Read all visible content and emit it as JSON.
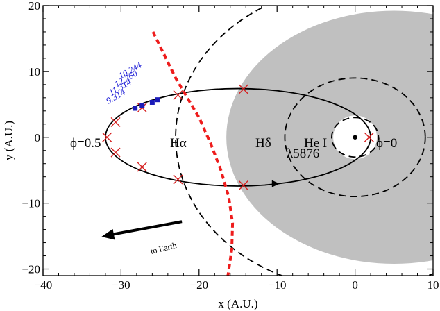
{
  "chart_data": {
    "type": "scatter",
    "title": "",
    "xlabel": "x (A.U.)",
    "ylabel": "y (A.U.)",
    "xlim": [
      -40,
      10
    ],
    "ylim": [
      -21,
      20
    ],
    "x_ticks": [
      -40,
      -30,
      -20,
      -10,
      0,
      10
    ],
    "x_tick_labels": [
      "−40",
      "−30",
      "−20",
      "−10",
      "0",
      "10"
    ],
    "y_ticks": [
      -20,
      -10,
      0,
      10,
      20
    ],
    "y_tick_labels": [
      "−20",
      "−10",
      "0",
      "10",
      "20"
    ],
    "grid": false,
    "legend": "none",
    "colors": {
      "orbit": "#000000",
      "markers": "#d62020",
      "shock": "#ee1c1c",
      "shade": "#c0c0c0",
      "phase_points": "#1a1ab8"
    },
    "orbit": {
      "center": [
        -15,
        0
      ],
      "semi_major": 17,
      "semi_minor": 7.4,
      "focus": [
        0,
        0
      ]
    },
    "orbit_markers": [
      {
        "x": 1.8,
        "y": 0
      },
      {
        "x": -14.3,
        "y": 7.3
      },
      {
        "x": -14.3,
        "y": -7.3
      },
      {
        "x": -22.7,
        "y": 6.4
      },
      {
        "x": -22.7,
        "y": -6.4
      },
      {
        "x": -27.3,
        "y": 4.5
      },
      {
        "x": -27.3,
        "y": -4.5
      },
      {
        "x": -30.7,
        "y": 2.3
      },
      {
        "x": -30.7,
        "y": -2.3
      },
      {
        "x": -31.8,
        "y": 0
      }
    ],
    "phase_points": [
      {
        "label": "9.314",
        "x": -28.2,
        "y": 4.4
      },
      {
        "label": "11.314",
        "x": -27.3,
        "y": 4.8
      },
      {
        "label": "12.260",
        "x": -26.0,
        "y": 5.3
      },
      {
        "label": "10.244",
        "x": -25.3,
        "y": 5.7
      }
    ],
    "dashed_circles": [
      {
        "cx": 0,
        "cy": 0,
        "r": 3
      },
      {
        "cx": 0,
        "cy": 0,
        "r": 9
      },
      {
        "cx": 0,
        "cy": 0,
        "r": 23
      }
    ],
    "shaded_region": {
      "cx": 5,
      "cy": 0,
      "rx": 21.5,
      "ry": 19.2,
      "hole_r": 2.8
    },
    "shock_curve": [
      {
        "x": -25.9,
        "y": 16
      },
      {
        "x": -23,
        "y": 9
      },
      {
        "x": -21.5,
        "y": 6
      },
      {
        "x": -20,
        "y": 3
      },
      {
        "x": -18.5,
        "y": -1
      },
      {
        "x": -17.2,
        "y": -5
      },
      {
        "x": -16.2,
        "y": -9
      },
      {
        "x": -15.7,
        "y": -13
      },
      {
        "x": -15.8,
        "y": -17
      },
      {
        "x": -16.3,
        "y": -21
      }
    ],
    "star": {
      "x": 0,
      "y": 0
    },
    "direction_arrow": {
      "from": [
        -22.2,
        -12.8
      ],
      "to": [
        -32.5,
        -15.1
      ],
      "label": "to Earth"
    },
    "annotations": [
      {
        "text": "ϕ=0.5",
        "x": -38.3,
        "y": 0
      },
      {
        "text": "ϕ=0",
        "x": 2.6,
        "y": 0
      },
      {
        "text": "Hα",
        "x": -25.3,
        "y": 0
      },
      {
        "text": "Hδ",
        "x": -12.4,
        "y": 0
      },
      {
        "text": "He I",
        "x": -7.3,
        "y": 0
      },
      {
        "text": "λ5876",
        "x": -9.5,
        "y": -1.5
      }
    ]
  }
}
